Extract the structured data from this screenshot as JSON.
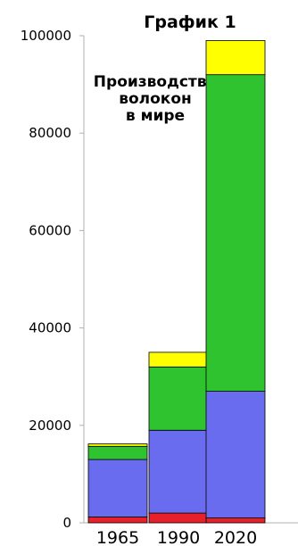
{
  "chart_data": {
    "type": "bar",
    "stacked": true,
    "title": "График 1",
    "annotation": [
      "Производство",
      "волокон",
      "в мире"
    ],
    "categories": [
      "1965",
      "1990",
      "2020"
    ],
    "series": [
      {
        "color": "#e8202a",
        "values": [
          1200,
          2000,
          1000
        ]
      },
      {
        "color": "#6a6cf0",
        "values": [
          11800,
          17000,
          26000
        ]
      },
      {
        "color": "#2fc42f",
        "values": [
          2700,
          13000,
          65000
        ]
      },
      {
        "color": "#ffff00",
        "values": [
          500,
          3000,
          7000
        ]
      }
    ],
    "yticks": [
      "0",
      "20000",
      "40000",
      "60000",
      "80000",
      "100000"
    ],
    "ylim": [
      0,
      100000
    ],
    "grid": false,
    "legend": "none"
  }
}
